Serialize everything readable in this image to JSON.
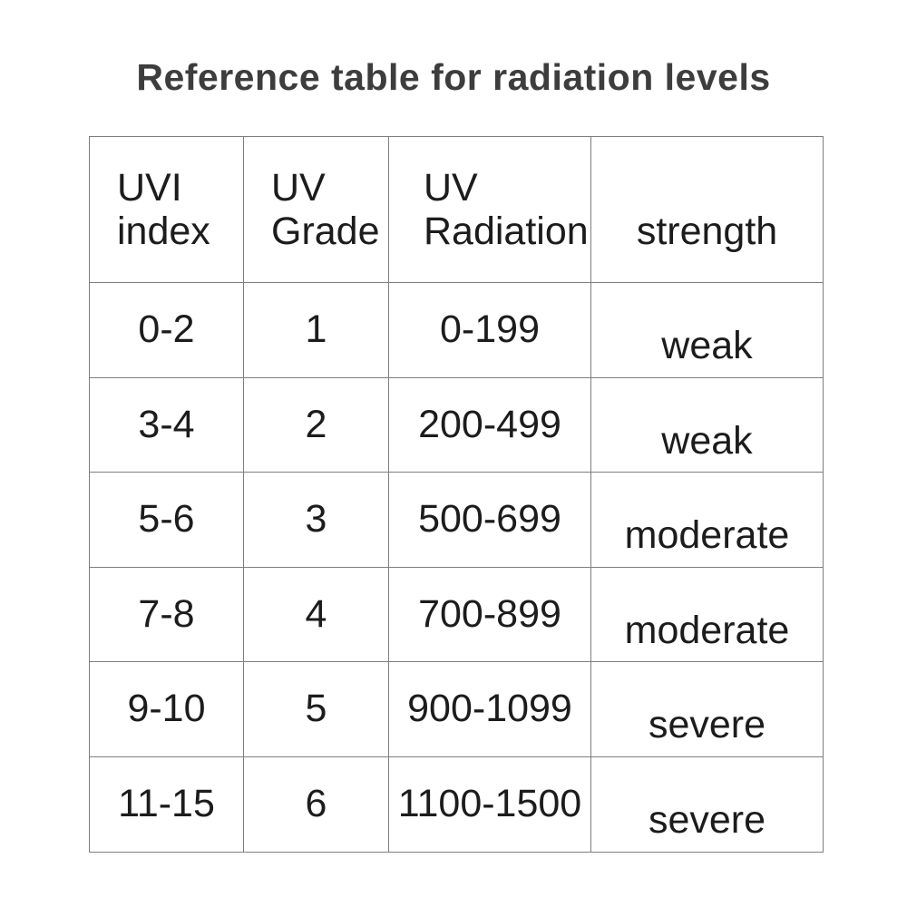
{
  "page": {
    "title": "Reference table for radiation levels"
  },
  "table": {
    "columns": [
      {
        "label_line1": "UVI",
        "label_line2": "index"
      },
      {
        "label_line1": "UV",
        "label_line2": "Grade"
      },
      {
        "label_line1": "UV",
        "label_line2": "Radiation"
      },
      {
        "label_line1": "strength"
      }
    ],
    "rows": [
      {
        "uvi_index": "0-2",
        "uv_grade": "1",
        "uv_radiation": "0-199",
        "strength": "weak"
      },
      {
        "uvi_index": "3-4",
        "uv_grade": "2",
        "uv_radiation": "200-499",
        "strength": "weak"
      },
      {
        "uvi_index": "5-6",
        "uv_grade": "3",
        "uv_radiation": "500-699",
        "strength": "moderate"
      },
      {
        "uvi_index": "7-8",
        "uv_grade": "4",
        "uv_radiation": "700-899",
        "strength": "moderate"
      },
      {
        "uvi_index": "9-10",
        "uv_grade": "5",
        "uv_radiation": "900-1099",
        "strength": "severe"
      },
      {
        "uvi_index": "11-15",
        "uv_grade": "6",
        "uv_radiation": "1100-1500",
        "strength": "severe"
      }
    ]
  },
  "colors": {
    "background": "#ffffff",
    "border": "#7e7e7e",
    "title_text": "#3d3d3d",
    "cell_text": "#1c1c1c"
  }
}
